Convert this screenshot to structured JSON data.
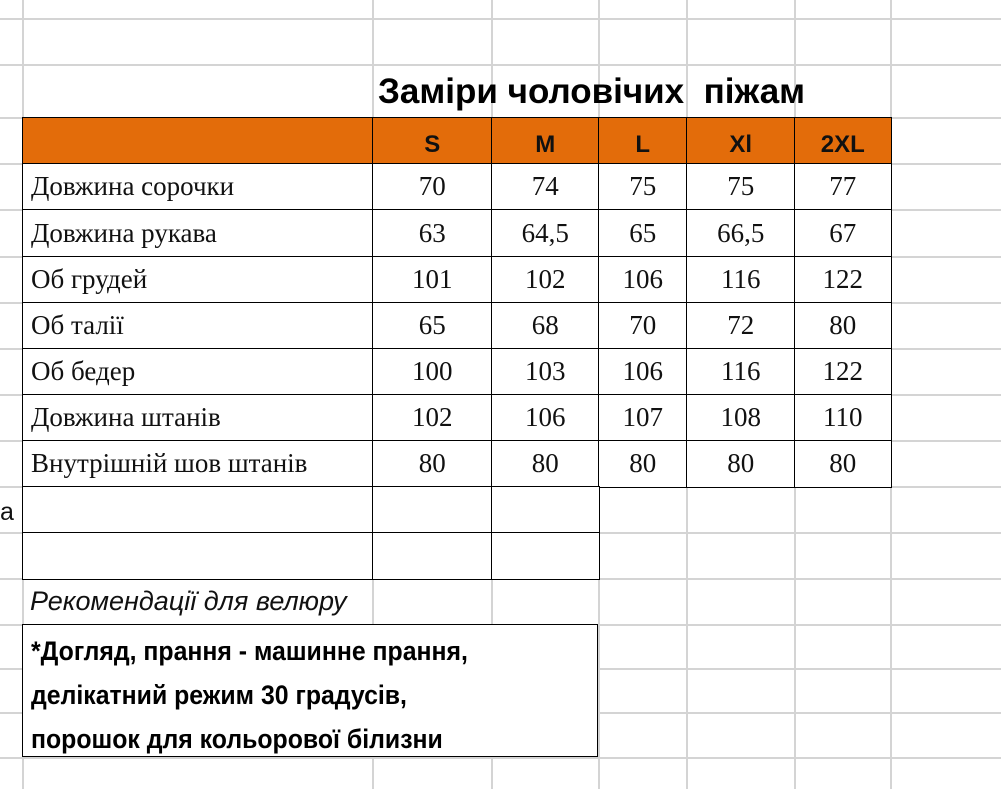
{
  "title": "Заміри чоловічих  піжам",
  "header_color": "#e36c0a",
  "sizes": [
    "S",
    "M",
    "L",
    "Xl",
    "2XL"
  ],
  "rows": [
    {
      "label": "Довжина сорочки",
      "values": [
        "70",
        "74",
        "75",
        "75",
        "77"
      ]
    },
    {
      "label": "Довжина рукава",
      "values": [
        "63",
        "64,5",
        "65",
        "66,5",
        "67"
      ]
    },
    {
      "label": "Об грудей",
      "values": [
        "101",
        "102",
        "106",
        "116",
        "122"
      ]
    },
    {
      "label": "Об талії",
      "values": [
        "65",
        "68",
        "70",
        "72",
        "80"
      ]
    },
    {
      "label": "Об бедер",
      "values": [
        "100",
        "103",
        "106",
        "116",
        "122"
      ]
    },
    {
      "label": "Довжина штанів",
      "values": [
        "102",
        "106",
        "107",
        "108",
        "110"
      ]
    },
    {
      "label": "Внутрішній шов штанів",
      "values": [
        "80",
        "80",
        "80",
        "80",
        "80"
      ]
    }
  ],
  "stray_text": "а",
  "recommendation_title": "Рекомендації для велюру",
  "note_lines": [
    "*Догляд, прання - машинне прання,",
    "делікатний режим 30 градусів,",
    "порошок для кольорової білизни"
  ]
}
